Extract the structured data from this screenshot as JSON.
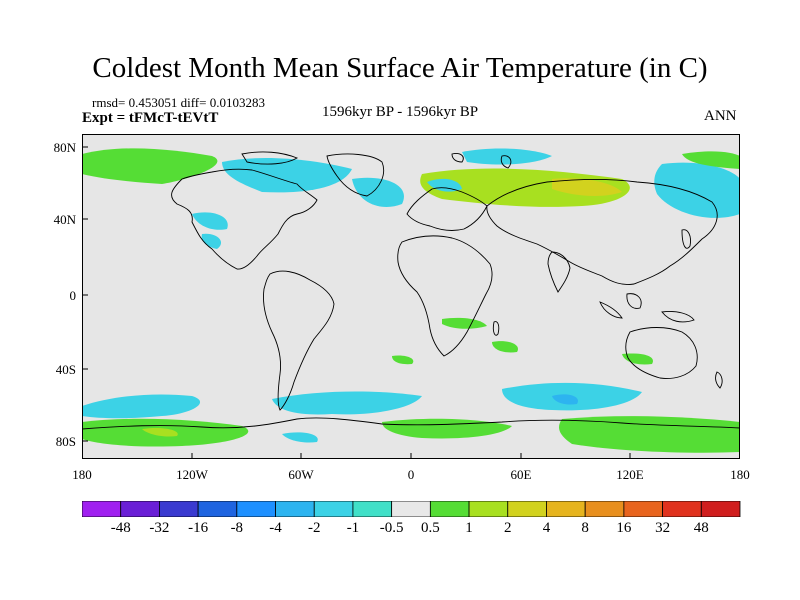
{
  "title": "Coldest Month Mean Surface Air Temperature (in C)",
  "stats": "rmsd= 0.453051 diff= 0.0103283",
  "experiment": "Expt = tFMcT-tEVtT",
  "period": "1596kyr BP - 1596kyr BP",
  "season": "ANN",
  "lat_ticks": [
    "80N",
    "40N",
    "0",
    "40S",
    "80S"
  ],
  "lon_ticks": [
    "180",
    "120W",
    "60W",
    "0",
    "60E",
    "120E",
    "180"
  ],
  "colorbar": {
    "labels": [
      "-48",
      "-32",
      "-16",
      "-8",
      "-4",
      "-2",
      "-1",
      "-0.5",
      "0.5",
      "1",
      "2",
      "4",
      "8",
      "16",
      "32",
      "48"
    ],
    "colors": [
      "#a020f0",
      "#6a1fd6",
      "#3a3ad0",
      "#1f64e0",
      "#1e90ff",
      "#2db4f0",
      "#3cd2e6",
      "#40e0c8",
      "#e8e8e8",
      "#55dd35",
      "#a8e020",
      "#d2d21e",
      "#e6b41e",
      "#e88f1e",
      "#e8641e",
      "#e0321e",
      "#d01e1e"
    ]
  },
  "map": {
    "ocean_color": "#e6e6e6",
    "coast_color": "#000000",
    "anomaly_colors": {
      "neg_small": "#3cd2e6",
      "neg_tiny": "#40e0c8",
      "pos_tiny": "#55dd35",
      "pos_small": "#a8e020",
      "pos_mid": "#d2d21e"
    }
  }
}
